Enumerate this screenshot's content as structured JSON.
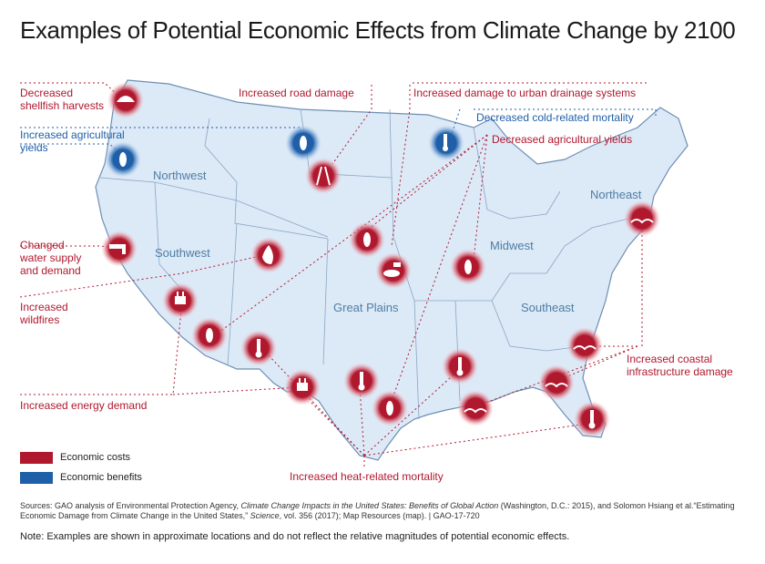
{
  "title": "Examples of Potential Economic Effects from Climate Change by 2100",
  "colors": {
    "cost": "#b0182e",
    "benefit": "#1f5fa8",
    "map_fill": "#dce9f7",
    "map_stroke": "#6f8fb3"
  },
  "regions": {
    "northwest": "Northwest",
    "southwest": "Southwest",
    "great_plains": "Great Plains",
    "midwest": "Midwest",
    "southeast": "Southeast",
    "northeast": "Northeast"
  },
  "labels": {
    "shellfish": "Decreased\nshellfish harvests",
    "ag_yields_up": "Increased agricultural\nyields",
    "water": "Changed\nwater supply\nand demand",
    "wildfires": "Increased\nwildfires",
    "energy": "Increased energy demand",
    "road": "Increased road damage",
    "drainage": "Increased damage to urban drainage systems",
    "cold_mortality": "Decreased cold-related mortality",
    "ag_yields_down": "Decreased agricultural yields",
    "coastal": "Increased coastal\ninfrastructure damage",
    "heat_mortality": "Increased heat-related mortality"
  },
  "legend": {
    "costs": "Economic costs",
    "benefits": "Economic benefits"
  },
  "icons": [
    {
      "name": "shellfish-icon",
      "type": "cost"
    },
    {
      "name": "corn-icon",
      "type": "benefit"
    },
    {
      "name": "corn-icon",
      "type": "benefit"
    },
    {
      "name": "snowflake-thermometer-icon",
      "type": "benefit"
    },
    {
      "name": "road-icon",
      "type": "cost"
    },
    {
      "name": "faucet-icon",
      "type": "cost"
    },
    {
      "name": "fire-icon",
      "type": "cost"
    },
    {
      "name": "plug-icon",
      "type": "cost"
    },
    {
      "name": "corn-icon",
      "type": "cost"
    },
    {
      "name": "thermometer-icon",
      "type": "cost"
    },
    {
      "name": "plug-icon",
      "type": "cost"
    },
    {
      "name": "corn-icon",
      "type": "cost"
    },
    {
      "name": "drainage-icon",
      "type": "cost"
    },
    {
      "name": "thermometer-icon",
      "type": "cost"
    },
    {
      "name": "corn-icon",
      "type": "cost"
    },
    {
      "name": "corn-icon",
      "type": "cost"
    },
    {
      "name": "thermometer-icon",
      "type": "cost"
    },
    {
      "name": "coast-icon",
      "type": "cost"
    },
    {
      "name": "coast-icon",
      "type": "cost"
    },
    {
      "name": "coast-icon",
      "type": "cost"
    },
    {
      "name": "coast-icon",
      "type": "cost"
    },
    {
      "name": "thermometer-icon",
      "type": "cost"
    },
    {
      "name": "coast-icon",
      "type": "cost"
    }
  ],
  "sources": {
    "prefix": "Sources: GAO analysis of Environmental Protection Agency, ",
    "title1": "Climate Change Impacts in the United States: Benefits of Global Action",
    "mid": " (Washington, D.C.: 2015), and Solomon Hsiang et al.“Estimating Economic Damage from Climate Change in the United States,” ",
    "title2": "Science",
    "suffix": ", vol. 356 (2017); Map Resources (map).  |  GAO-17-720"
  },
  "note": "Note: Examples are shown in approximate locations and do not reflect the relative magnitudes of potential economic effects."
}
